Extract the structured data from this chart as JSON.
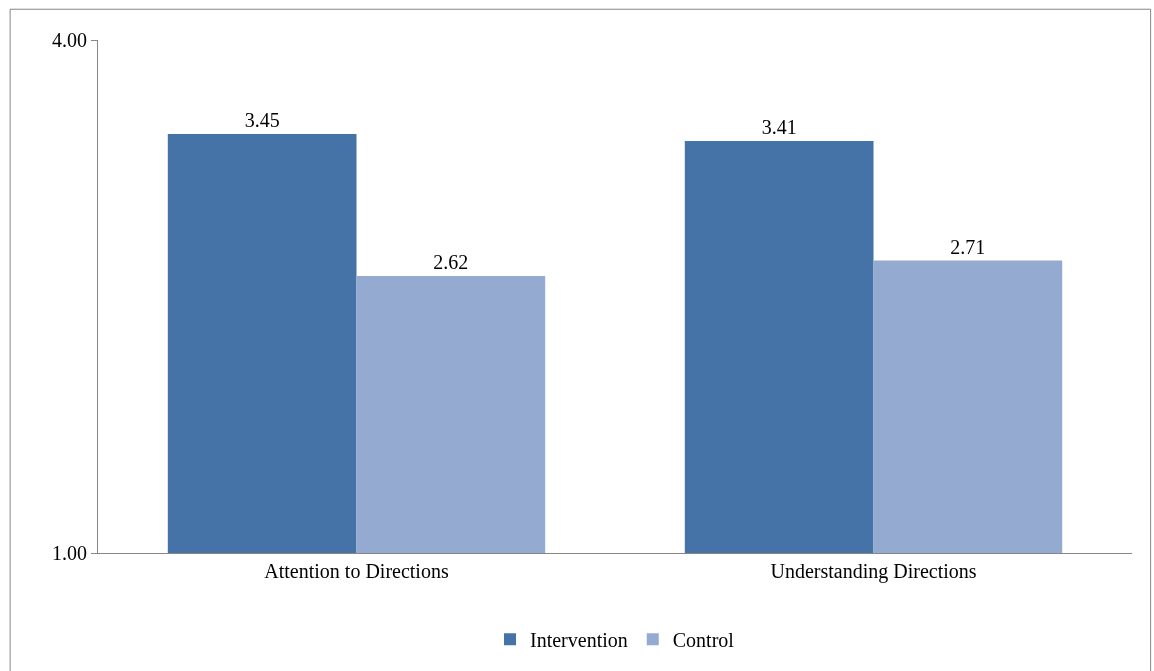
{
  "chart_data": {
    "type": "bar",
    "categories": [
      "Attention to Directions",
      "Understanding Directions"
    ],
    "series": [
      {
        "name": "Intervention",
        "color": "#4573a7",
        "values": [
          3.45,
          3.41
        ]
      },
      {
        "name": "Control",
        "color": "#95aad0",
        "values": [
          2.62,
          2.71
        ]
      }
    ],
    "ylim": [
      1,
      4
    ],
    "yticks": [
      {
        "value": 1,
        "label": "1.00"
      },
      {
        "value": 4,
        "label": "4.00"
      }
    ],
    "data_labels": true,
    "legend": "bottom"
  }
}
